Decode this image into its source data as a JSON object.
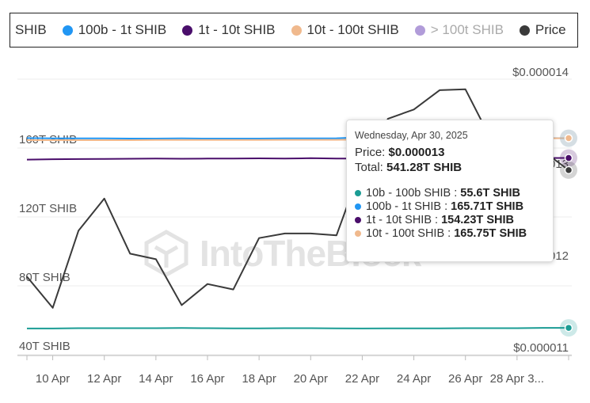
{
  "legend": {
    "items": [
      {
        "label": "SHIB",
        "color": ""
      },
      {
        "label": "100b - 1t SHIB",
        "color": "#2196f3"
      },
      {
        "label": "1t - 10t SHIB",
        "color": "#4a0e6b"
      },
      {
        "label": "10t - 100t SHIB",
        "color": "#f0b98d"
      },
      {
        "label": "> 100t SHIB",
        "color": "#b19cd9",
        "muted": true
      },
      {
        "label": "Price",
        "color": "#3a3a3a"
      }
    ]
  },
  "watermark": {
    "text": "IntoTheBlock"
  },
  "tooltip": {
    "date": "Wednesday, Apr 30, 2025",
    "price_label": "Price:",
    "price_value": "$0.000013",
    "total_label": "Total:",
    "total_value": "541.28T SHIB",
    "series": [
      {
        "label": "10b - 100b SHIB :",
        "value": "55.6T SHIB",
        "color": "#1a9c94"
      },
      {
        "label": "100b - 1t SHIB :",
        "value": "165.71T SHIB",
        "color": "#2196f3"
      },
      {
        "label": "1t - 10t SHIB :",
        "value": "154.23T SHIB",
        "color": "#4a0e6b"
      },
      {
        "label": "10t - 100t SHIB :",
        "value": "165.75T SHIB",
        "color": "#f0b98d"
      }
    ]
  },
  "chart_data": {
    "type": "line",
    "x": [
      "Apr 9",
      "Apr 10",
      "Apr 11",
      "Apr 12",
      "Apr 13",
      "Apr 14",
      "Apr 15",
      "Apr 16",
      "Apr 17",
      "Apr 18",
      "Apr 19",
      "Apr 20",
      "Apr 21",
      "Apr 22",
      "Apr 23",
      "Apr 24",
      "Apr 25",
      "Apr 26",
      "Apr 27",
      "Apr 28",
      "Apr 29",
      "Apr 30"
    ],
    "x_tick_labels": [
      "10 Apr",
      "12 Apr",
      "14 Apr",
      "16 Apr",
      "18 Apr",
      "20 Apr",
      "22 Apr",
      "24 Apr",
      "26 Apr",
      "28 Apr 3..."
    ],
    "y_left": {
      "range": [
        40,
        200
      ],
      "tick_labels": [
        "40T SHIB",
        "80T SHIB",
        "120T SHIB",
        "160T SHIB"
      ],
      "tick_values": [
        40,
        80,
        120,
        160
      ]
    },
    "y_right": {
      "range": [
        1.1e-05,
        1.4e-05
      ],
      "tick_labels": [
        "$0.000011",
        "$0.000012",
        "$0.000013",
        "$0.000014"
      ],
      "tick_values": [
        1.1e-05,
        1.2e-05,
        1.3e-05,
        1.4e-05
      ]
    },
    "series": [
      {
        "name": "10b - 100b SHIB",
        "axis": "left",
        "color": "#1a9c94",
        "values": [
          55.2,
          55.2,
          55.4,
          55.4,
          55.4,
          55.4,
          55.5,
          55.4,
          55.3,
          55.3,
          55.4,
          55.4,
          55.3,
          55.2,
          55.3,
          55.3,
          55.3,
          55.4,
          55.4,
          55.4,
          55.6,
          55.6
        ]
      },
      {
        "name": "100b - 1t SHIB",
        "axis": "left",
        "color": "#2196f3",
        "values": [
          165.8,
          165.6,
          165.6,
          165.6,
          165.5,
          165.5,
          165.6,
          165.5,
          165.5,
          165.5,
          165.6,
          165.6,
          165.7,
          166.2,
          166.8,
          166.5,
          166.3,
          166.1,
          165.9,
          165.8,
          165.8,
          165.71
        ]
      },
      {
        "name": "1t - 10t SHIB",
        "axis": "left",
        "color": "#4a0e6b",
        "values": [
          153.3,
          153.5,
          153.6,
          153.7,
          153.8,
          153.9,
          153.8,
          153.9,
          153.9,
          154.0,
          153.9,
          154.1,
          153.9,
          153.9,
          154.0,
          154.1,
          154.2,
          154.2,
          154.2,
          154.3,
          154.2,
          154.23
        ]
      },
      {
        "name": "10t - 100t SHIB",
        "axis": "left",
        "color": "#f0b98d",
        "values": [
          164.6,
          164.6,
          164.6,
          164.6,
          164.6,
          164.7,
          164.7,
          164.7,
          164.7,
          164.7,
          164.8,
          164.8,
          164.8,
          164.9,
          164.9,
          164.9,
          165.0,
          165.1,
          165.3,
          165.5,
          165.6,
          165.75
        ]
      },
      {
        "name": "Price",
        "axis": "right",
        "color": "#3a3a3a",
        "values": [
          1.185e-05,
          1.151e-05,
          1.235e-05,
          1.27e-05,
          1.21e-05,
          1.204e-05,
          1.154e-05,
          1.177e-05,
          1.171e-05,
          1.227e-05,
          1.232e-05,
          1.232e-05,
          1.23e-05,
          1.307e-05,
          1.357e-05,
          1.367e-05,
          1.388e-05,
          1.389e-05,
          1.334e-05,
          1.328e-05,
          1.322e-05,
          1.301e-05
        ]
      }
    ],
    "grid": true,
    "legend_position": "top"
  }
}
